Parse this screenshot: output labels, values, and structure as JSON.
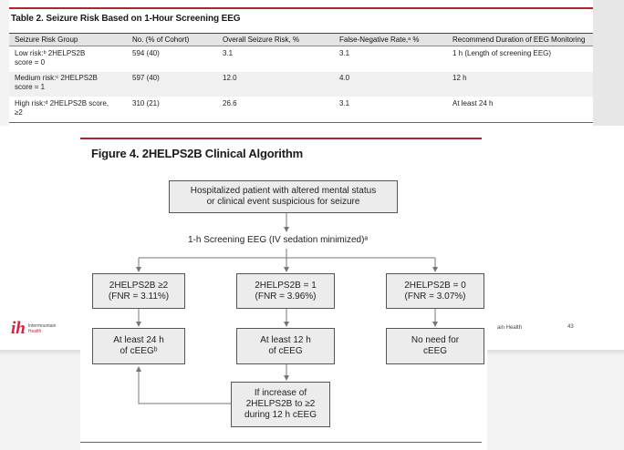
{
  "table": {
    "title": "Table 2. Seizure Risk Based on 1-Hour Screening EEG",
    "headers": [
      "Seizure Risk Group",
      "No. (% of Cohort)",
      "Overall Seizure Risk, %",
      "False-Negative Rate,ᵃ %",
      "Recommend Duration of EEG Monitoring"
    ],
    "rows": [
      {
        "group_line1": "Low risk:ᵇ 2HELPS2B",
        "group_line2": "score = 0",
        "count": "594 (40)",
        "risk": "3.1",
        "fnr": "3.1",
        "duration": "1 h (Length of screening EEG)"
      },
      {
        "group_line1": "Medium risk:ᶜ 2HELPS2B",
        "group_line2": "score = 1",
        "count": "597 (40)",
        "risk": "12.0",
        "fnr": "4.0",
        "duration": "12 h"
      },
      {
        "group_line1": "High risk:ᵈ 2HELPS2B score,",
        "group_line2": "≥2",
        "count": "310 (21)",
        "risk": "26.6",
        "fnr": "3.1",
        "duration": "At least 24 h"
      }
    ]
  },
  "figure": {
    "title": "Figure 4. 2HELPS2B Clinical Algorithm",
    "start_line1": "Hospitalized patient with altered mental status",
    "start_line2": "or clinical event suspicious for seizure",
    "screening_label": "1-h Screening EEG (IV sedation minimized)ᵃ",
    "branch_high_line1": "2HELPS2B ≥2",
    "branch_high_line2": "(FNR = 3.11%)",
    "branch_mid_line1": "2HELPS2B = 1",
    "branch_mid_line2": "(FNR = 3.96%)",
    "branch_low_line1": "2HELPS2B = 0",
    "branch_low_line2": "(FNR = 3.07%)",
    "out_high_line1": "At least 24 h",
    "out_high_line2": "of cEEGᵇ",
    "out_mid_line1": "At least 12 h",
    "out_mid_line2": "of cEEG",
    "out_low_line1": "No need for",
    "out_low_line2": "cEEG",
    "increase_line1": "If increase of",
    "increase_line2": "2HELPS2B to ≥2",
    "increase_line3": "during 12 h cEEG"
  },
  "slide": {
    "logo_mark": "ih",
    "logo_line1": "Intermountain",
    "logo_line2": "Health",
    "footer_org": "ain Health",
    "page_number": "43"
  },
  "colors": {
    "accent_red": "#b22234",
    "box_fill": "#ececec",
    "header_fill": "#e4e4e4",
    "logo_red": "#d6213e"
  }
}
